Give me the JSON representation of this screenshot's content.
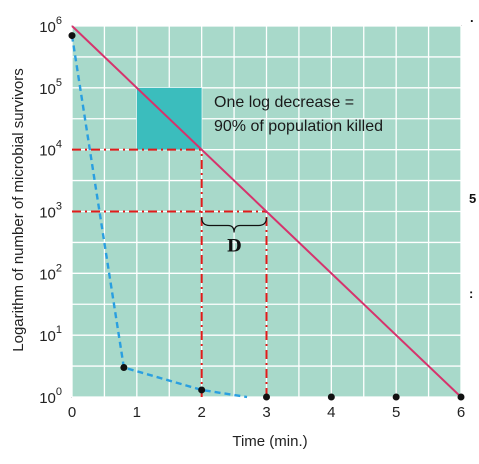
{
  "chart_data": {
    "type": "line",
    "xlabel": "Time (min.)",
    "ylabel": "Logarithm of number of microbial survivors",
    "x_ticks": [
      "0",
      "1",
      "2",
      "3",
      "4",
      "5",
      "6"
    ],
    "y_ticks": [
      {
        "base": "10",
        "exp": "0"
      },
      {
        "base": "10",
        "exp": "1"
      },
      {
        "base": "10",
        "exp": "2"
      },
      {
        "base": "10",
        "exp": "3"
      },
      {
        "base": "10",
        "exp": "4"
      },
      {
        "base": "10",
        "exp": "5"
      },
      {
        "base": "10",
        "exp": "6"
      }
    ],
    "xlim": [
      0,
      6
    ],
    "ylim": [
      1,
      1000000
    ],
    "y_scale": "log",
    "grid": true,
    "series": [
      {
        "style": "solid",
        "color": "#d6336c",
        "points": [
          [
            0,
            1000000
          ],
          [
            6,
            1
          ]
        ]
      },
      {
        "style": "dashed",
        "color": "#2a9fe0",
        "points": [
          [
            0,
            700000
          ],
          [
            0.8,
            3
          ],
          [
            2,
            1.3
          ],
          [
            2.7,
            1
          ]
        ]
      }
    ],
    "markers": [
      [
        0,
        700000
      ],
      [
        0.8,
        3
      ],
      [
        2,
        1.3
      ],
      [
        3,
        1
      ],
      [
        4,
        1
      ],
      [
        5,
        1
      ],
      [
        6,
        1
      ]
    ],
    "shaded_square": {
      "x": [
        1,
        2
      ],
      "y": [
        10000,
        100000
      ],
      "color": "#3bbdbd"
    },
    "reference_lines": {
      "color": "#e31b1b",
      "horizontal": [
        {
          "y": 10000,
          "x": [
            0,
            2
          ]
        },
        {
          "y": 1000,
          "x": [
            0,
            3
          ]
        }
      ],
      "vertical": [
        {
          "x": 2,
          "y": [
            1,
            10000
          ]
        },
        {
          "x": 3,
          "y": [
            1,
            1000
          ]
        }
      ]
    },
    "annotation": {
      "line1": "One log decrease =",
      "line2": "90% of population killed"
    },
    "d_label": "D",
    "bracket_x": [
      2,
      3
    ],
    "background": "#a8d9ca",
    "grid_color": "#ffffff"
  },
  "margin_marks": [
    ".",
    "5",
    ":"
  ]
}
